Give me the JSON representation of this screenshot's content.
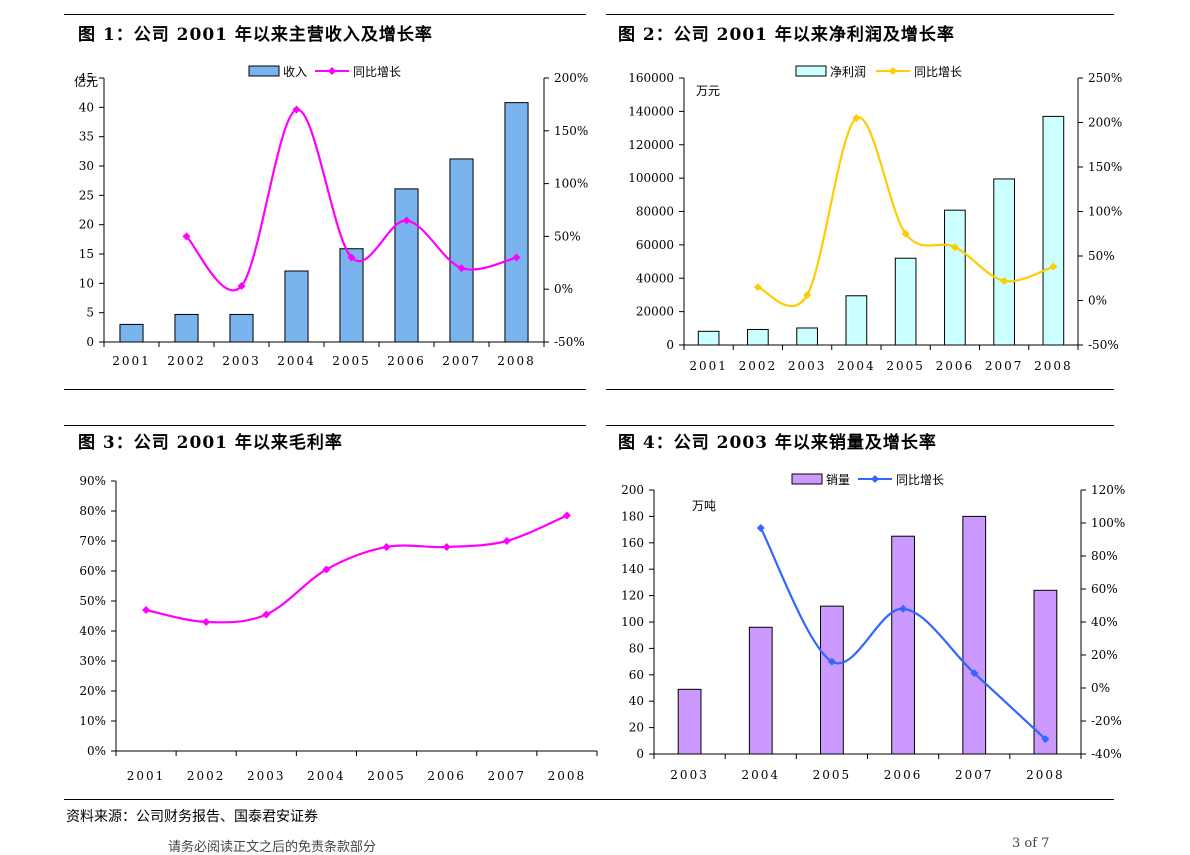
{
  "source": "资料来源：公司财务报告、国泰君安证券",
  "footer": {
    "note": "请务必阅读正文之后的免责条款部分",
    "page": "3 of 7"
  },
  "chart_data": [
    {
      "title": "图 1：公司 2001 年以来主营收入及增长率",
      "type": "bar",
      "categories": [
        "2001",
        "2002",
        "2003",
        "2004",
        "2005",
        "2006",
        "2007",
        "2008"
      ],
      "ylabel": "亿元",
      "ylim": [
        0,
        45
      ],
      "yticks": [
        "0",
        "5",
        "10",
        "15",
        "20",
        "25",
        "30",
        "35",
        "40",
        "45"
      ],
      "y2lim": [
        -50,
        200
      ],
      "y2ticks": [
        "-50%",
        "0%",
        "50%",
        "100%",
        "150%",
        "200%"
      ],
      "legend": [
        "收入",
        "同比增长"
      ],
      "legend_position": "top",
      "series": [
        {
          "name": "收入",
          "type": "bar",
          "values": [
            3,
            4.7,
            4.7,
            12.1,
            15.9,
            26.1,
            31.2,
            40.8
          ],
          "color": "#7ab4ee"
        },
        {
          "name": "同比增长",
          "type": "line",
          "axis": "right",
          "values": [
            null,
            50,
            3,
            170,
            30,
            65,
            20,
            30
          ],
          "color": "#ff00ff"
        }
      ]
    },
    {
      "title": "图 2：公司 2001 年以来净利润及增长率",
      "type": "bar",
      "categories": [
        "2001",
        "2002",
        "2003",
        "2004",
        "2005",
        "2006",
        "2007",
        "2008"
      ],
      "ylabel": "万元",
      "ylim": [
        0,
        160000
      ],
      "yticks": [
        "0",
        "20000",
        "40000",
        "60000",
        "80000",
        "100000",
        "120000",
        "140000",
        "160000"
      ],
      "y2lim": [
        -50,
        250
      ],
      "y2ticks": [
        "-50%",
        "0%",
        "50%",
        "100%",
        "150%",
        "200%",
        "250%"
      ],
      "legend": [
        "净利润",
        "同比增长"
      ],
      "legend_position": "top",
      "series": [
        {
          "name": "净利润",
          "type": "bar",
          "values": [
            8200,
            9300,
            10200,
            29500,
            52000,
            80800,
            99500,
            137000
          ],
          "color": "#ccffff"
        },
        {
          "name": "同比增长",
          "type": "line",
          "axis": "right",
          "values": [
            null,
            15,
            6,
            205,
            75,
            60,
            22,
            38
          ],
          "color": "#ffcc00"
        }
      ]
    },
    {
      "title": "图 3：公司 2001 年以来毛利率",
      "type": "line",
      "categories": [
        "2001",
        "2002",
        "2003",
        "2004",
        "2005",
        "2006",
        "2007",
        "2008"
      ],
      "ylim": [
        0,
        90
      ],
      "yticks": [
        "0%",
        "10%",
        "20%",
        "30%",
        "40%",
        "50%",
        "60%",
        "70%",
        "80%",
        "90%"
      ],
      "series": [
        {
          "name": "毛利率",
          "type": "line",
          "values": [
            47,
            43,
            45.5,
            60.5,
            68,
            68,
            70,
            78.5
          ],
          "color": "#ff00ff"
        }
      ]
    },
    {
      "title": "图 4：公司 2003 年以来销量及增长率",
      "type": "bar",
      "categories": [
        "2003",
        "2004",
        "2005",
        "2006",
        "2007",
        "2008"
      ],
      "ylabel": "万吨",
      "ylim": [
        0,
        200
      ],
      "yticks": [
        "0",
        "20",
        "40",
        "60",
        "80",
        "100",
        "120",
        "140",
        "160",
        "180",
        "200"
      ],
      "y2lim": [
        -40,
        120
      ],
      "y2ticks": [
        "-40%",
        "-20%",
        "0%",
        "20%",
        "40%",
        "60%",
        "80%",
        "100%",
        "120%"
      ],
      "legend": [
        "销量",
        "同比增长"
      ],
      "legend_position": "top",
      "series": [
        {
          "name": "销量",
          "type": "bar",
          "values": [
            49,
            96,
            112,
            165,
            180,
            124
          ],
          "color": "#cc99ff"
        },
        {
          "name": "同比增长",
          "type": "line",
          "axis": "right",
          "values": [
            null,
            97,
            16,
            48,
            9,
            -31
          ],
          "color": "#3366ff"
        }
      ]
    }
  ]
}
